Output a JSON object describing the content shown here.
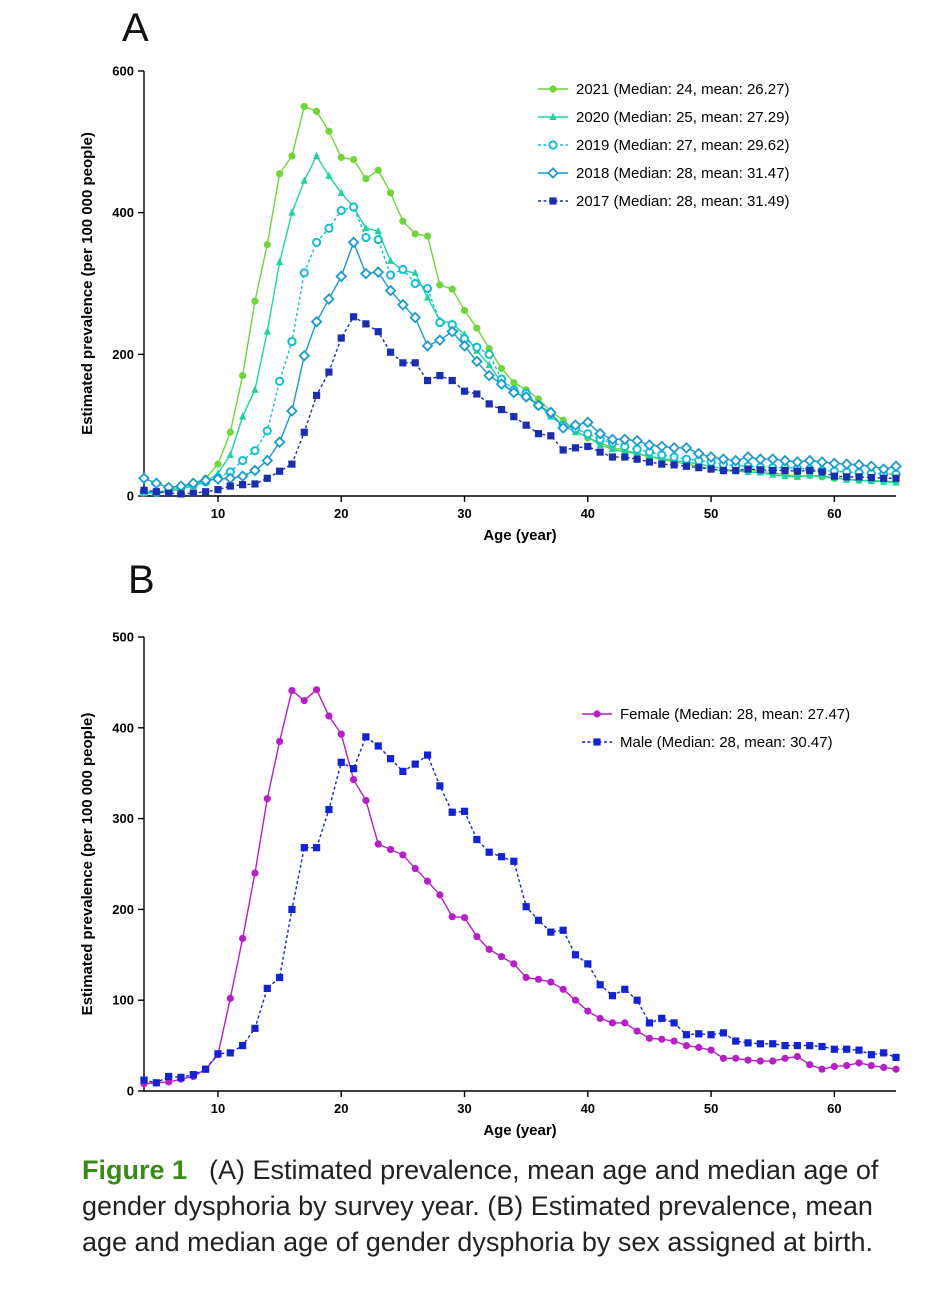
{
  "panels": {
    "a": "A",
    "b": "B"
  },
  "caption": {
    "label": "Figure 1",
    "text": "(A) Estimated prevalence, mean age and median age of gender dysphoria by survey year. (B) Estimated prevalence, mean age and median age of gender dysphoria by sex assigned at birth."
  },
  "chart_data": [
    {
      "type": "line",
      "panel": "A",
      "xlabel": "Age (year)",
      "ylabel": "Estimated prevalence (per 100 000 people)",
      "xlim": [
        4,
        65
      ],
      "ylim": [
        0,
        600
      ],
      "xticks": [
        10,
        20,
        30,
        40,
        50,
        60
      ],
      "yticks": [
        0,
        200,
        400,
        600
      ],
      "legend_position": "top-right",
      "x": [
        4,
        5,
        6,
        7,
        8,
        9,
        10,
        11,
        12,
        13,
        14,
        15,
        16,
        17,
        18,
        19,
        20,
        21,
        22,
        23,
        24,
        25,
        26,
        27,
        28,
        29,
        30,
        31,
        32,
        33,
        34,
        35,
        36,
        37,
        38,
        39,
        40,
        41,
        42,
        43,
        44,
        45,
        46,
        47,
        48,
        49,
        50,
        51,
        52,
        53,
        54,
        55,
        56,
        57,
        58,
        59,
        60,
        61,
        62,
        63,
        64,
        65
      ],
      "series": [
        {
          "name": "2021 (Median: 24, mean: 26.27)",
          "color": "#6fd63a",
          "marker": "circle",
          "dash": false,
          "values": [
            5,
            5,
            8,
            12,
            18,
            25,
            45,
            90,
            170,
            275,
            355,
            455,
            480,
            550,
            543,
            515,
            478,
            475,
            448,
            460,
            428,
            388,
            370,
            367,
            298,
            292,
            262,
            237,
            208,
            180,
            160,
            150,
            137,
            120,
            107,
            92,
            82,
            75,
            68,
            65,
            60,
            55,
            52,
            48,
            45,
            42,
            38,
            35,
            36,
            37,
            35,
            33,
            30,
            28,
            29,
            27,
            25,
            24,
            22,
            22,
            21,
            20
          ]
        },
        {
          "name": "2020 (Median: 25, mean: 27.29)",
          "color": "#1fd3a0",
          "marker": "triangle",
          "dash": false,
          "values": [
            4,
            4,
            6,
            10,
            14,
            20,
            32,
            58,
            112,
            150,
            232,
            330,
            400,
            445,
            480,
            452,
            428,
            408,
            378,
            374,
            332,
            318,
            315,
            280,
            248,
            244,
            228,
            205,
            185,
            160,
            146,
            140,
            130,
            112,
            100,
            90,
            84,
            72,
            66,
            62,
            60,
            56,
            53,
            50,
            48,
            45,
            42,
            38,
            35,
            34,
            33,
            30,
            28,
            27,
            29,
            28,
            26,
            23,
            22,
            21,
            20,
            19
          ]
        },
        {
          "name": "2019 (Median: 27, mean: 29.62)",
          "color": "#14bfd6",
          "marker": "circle-open",
          "dash": true,
          "values": [
            6,
            5,
            8,
            12,
            16,
            20,
            26,
            34,
            50,
            64,
            92,
            162,
            218,
            315,
            358,
            378,
            403,
            408,
            365,
            362,
            312,
            320,
            300,
            293,
            245,
            242,
            222,
            210,
            200,
            165,
            150,
            145,
            128,
            116,
            100,
            95,
            88,
            80,
            75,
            70,
            66,
            62,
            58,
            55,
            52,
            50,
            48,
            45,
            43,
            42,
            41,
            40,
            40,
            39,
            38,
            36,
            35,
            34,
            33,
            32,
            31,
            31
          ]
        },
        {
          "name": "2018 (Median: 28, mean: 31.47)",
          "color": "#1a9ad0",
          "marker": "diamond",
          "dash": false,
          "values": [
            25,
            18,
            12,
            14,
            18,
            22,
            24,
            25,
            28,
            36,
            50,
            76,
            120,
            198,
            246,
            278,
            310,
            358,
            314,
            316,
            290,
            270,
            252,
            212,
            220,
            232,
            212,
            190,
            170,
            158,
            146,
            140,
            128,
            118,
            96,
            100,
            104,
            88,
            80,
            80,
            78,
            72,
            70,
            68,
            68,
            60,
            55,
            52,
            50,
            55,
            52,
            52,
            50,
            48,
            50,
            48,
            46,
            45,
            44,
            42,
            38,
            42
          ]
        },
        {
          "name": "2017 (Median: 28, mean: 31.49)",
          "color": "#1a2fb0",
          "marker": "square",
          "dash": true,
          "values": [
            8,
            6,
            4,
            3,
            4,
            6,
            9,
            14,
            16,
            17,
            25,
            35,
            45,
            90,
            142,
            175,
            223,
            253,
            243,
            232,
            203,
            188,
            188,
            163,
            170,
            163,
            148,
            144,
            130,
            122,
            112,
            100,
            88,
            85,
            65,
            68,
            70,
            62,
            55,
            55,
            52,
            48,
            45,
            44,
            42,
            40,
            38,
            36,
            36,
            38,
            37,
            36,
            36,
            35,
            36,
            34,
            28,
            27,
            27,
            26,
            25,
            25
          ]
        }
      ]
    },
    {
      "type": "line",
      "panel": "B",
      "xlabel": "Age (year)",
      "ylabel": "Estimated prevalence (per 100 000 people)",
      "xlim": [
        4,
        65
      ],
      "ylim": [
        0,
        500
      ],
      "xticks": [
        10,
        20,
        30,
        40,
        50,
        60
      ],
      "yticks": [
        0,
        100,
        200,
        300,
        400,
        500
      ],
      "legend_position": "top-right",
      "x": [
        4,
        5,
        6,
        7,
        8,
        9,
        10,
        11,
        12,
        13,
        14,
        15,
        16,
        17,
        18,
        19,
        20,
        21,
        22,
        23,
        24,
        25,
        26,
        27,
        28,
        29,
        30,
        31,
        32,
        33,
        34,
        35,
        36,
        37,
        38,
        39,
        40,
        41,
        42,
        43,
        44,
        45,
        46,
        47,
        48,
        49,
        50,
        51,
        52,
        53,
        54,
        55,
        56,
        57,
        58,
        59,
        60,
        61,
        62,
        63,
        64,
        65
      ],
      "series": [
        {
          "name": "Female (Median: 28, mean: 27.47)",
          "color": "#b81ec8",
          "marker": "circle",
          "dash": false,
          "values": [
            8,
            9,
            10,
            13,
            16,
            24,
            40,
            102,
            168,
            240,
            322,
            385,
            441,
            430,
            442,
            413,
            393,
            343,
            320,
            272,
            266,
            260,
            245,
            231,
            216,
            192,
            191,
            170,
            156,
            148,
            140,
            125,
            123,
            120,
            112,
            100,
            88,
            80,
            75,
            75,
            66,
            58,
            57,
            55,
            50,
            48,
            45,
            36,
            36,
            34,
            33,
            33,
            36,
            38,
            29,
            24,
            27,
            28,
            31,
            28,
            26,
            24
          ]
        },
        {
          "name": "Male (Median: 28, mean: 30.47)",
          "color": "#1422d6",
          "marker": "square",
          "dash": true,
          "values": [
            12,
            9,
            16,
            15,
            18,
            24,
            41,
            42,
            50,
            69,
            113,
            125,
            200,
            268,
            268,
            310,
            362,
            355,
            390,
            380,
            366,
            352,
            360,
            370,
            336,
            307,
            308,
            277,
            263,
            258,
            253,
            203,
            188,
            175,
            177,
            150,
            140,
            117,
            105,
            112,
            100,
            75,
            80,
            75,
            62,
            63,
            62,
            64,
            55,
            53,
            52,
            52,
            50,
            50,
            50,
            49,
            46,
            46,
            45,
            40,
            42,
            37
          ]
        }
      ]
    }
  ]
}
